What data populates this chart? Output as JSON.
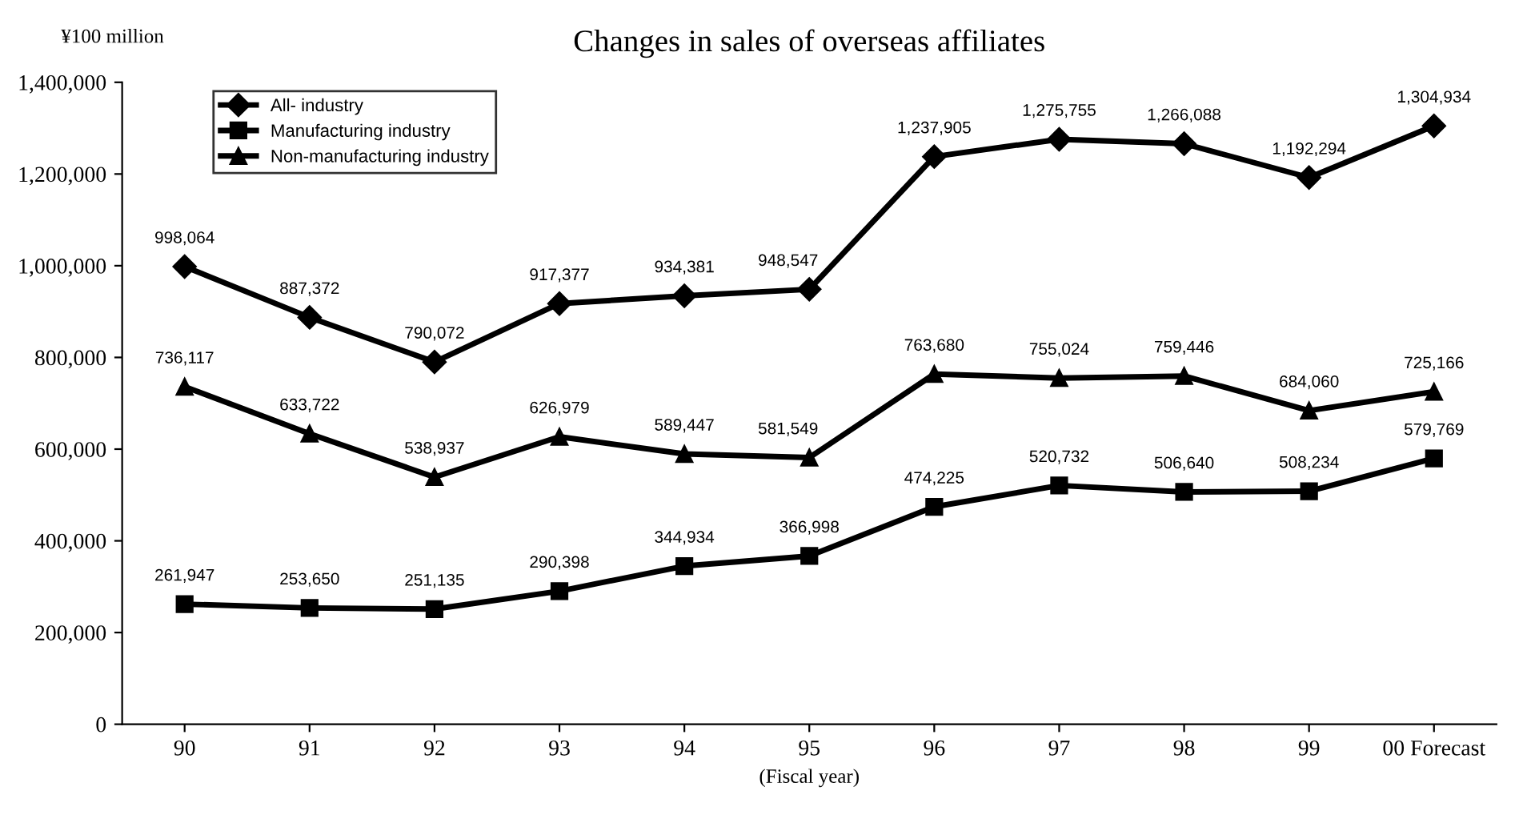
{
  "chart_data": {
    "type": "line",
    "title": "Changes in sales of overseas affiliates",
    "ylabel": "¥100 million",
    "xlabel": "(Fiscal year)",
    "categories": [
      "90",
      "91",
      "92",
      "93",
      "94",
      "95",
      "96",
      "97",
      "98",
      "99",
      "00 Forecast"
    ],
    "series": [
      {
        "name": "All- industry",
        "color": "#000000",
        "marker": "diamond",
        "values": [
          998064,
          887372,
          790072,
          917377,
          934381,
          948547,
          1237905,
          1275755,
          1266088,
          1192294,
          1304934
        ],
        "value_labels": [
          "998,064",
          "887,372",
          "790,072",
          "917,377",
          "934,381",
          "948,547",
          "1,237,905",
          "1,275,755",
          "1,266,088",
          "1,192,294",
          "1,304,934"
        ]
      },
      {
        "name": "Manufacturing industry",
        "color": "#000000",
        "marker": "square",
        "values": [
          261947,
          253650,
          251135,
          290398,
          344934,
          366998,
          474225,
          520732,
          506640,
          508234,
          579769
        ],
        "value_labels": [
          "261,947",
          "253,650",
          "251,135",
          "290,398",
          "344,934",
          "366,998",
          "474,225",
          "520,732",
          "506,640",
          "508,234",
          "579,769"
        ]
      },
      {
        "name": "Non-manufacturing industry",
        "color": "#000000",
        "marker": "triangle",
        "values": [
          736117,
          633722,
          538937,
          626979,
          589447,
          581549,
          763680,
          755024,
          759446,
          684060,
          725166
        ],
        "value_labels": [
          "736,117",
          "633,722",
          "538,937",
          "626,979",
          "589,447",
          "581,549",
          "763,680",
          "755,024",
          "759,446",
          "684,060",
          "725,166"
        ]
      }
    ],
    "ylim": [
      0,
      1400000
    ],
    "yticks": [
      0,
      {
        "value": 200000,
        "label": "200,000"
      },
      {
        "value": 400000,
        "label": "400,000"
      },
      {
        "value": 600000,
        "label": "600,000"
      },
      {
        "value": 800000,
        "label": "800,000"
      },
      {
        "value": 1000000,
        "label": "1,000,000"
      },
      {
        "value": 1200000,
        "label": "1,200,000"
      },
      {
        "value": 1400000,
        "label": "1,400,000"
      }
    ],
    "grid": false,
    "legend": "top left",
    "line_style": "solid"
  }
}
